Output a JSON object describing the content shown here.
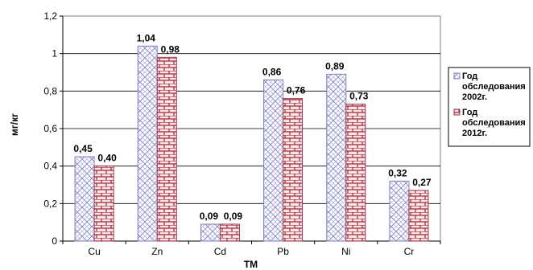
{
  "chart_data": {
    "type": "bar",
    "categories": [
      "Cu",
      "Zn",
      "Cd",
      "Pb",
      "Ni",
      "Cr"
    ],
    "series": [
      {
        "name": [
          "Год",
          "обследования",
          "2002г."
        ],
        "values": [
          0.45,
          1.04,
          0.09,
          0.86,
          0.89,
          0.32
        ],
        "labels": [
          "0,45",
          "1,04",
          "0,09",
          "0,86",
          "0,89",
          "0,32"
        ],
        "fill": "#d9d9f2",
        "stroke": "#7f7fb8",
        "pattern": "crosshatch"
      },
      {
        "name": [
          "Год",
          "обследования",
          "2012г."
        ],
        "values": [
          0.4,
          0.98,
          0.09,
          0.76,
          0.73,
          0.27
        ],
        "labels": [
          "0,40",
          "0,98",
          "0,09",
          "0,76",
          "0,73",
          "0,27"
        ],
        "fill": "#f2dede",
        "stroke": "#993344",
        "pattern": "brick"
      }
    ],
    "xlabel": "ТМ",
    "ylabel": "мг/кг",
    "ylim": [
      0,
      1.2
    ],
    "yticks": [
      "0",
      "0,2",
      "0,4",
      "0,6",
      "0,8",
      "1",
      "1,2"
    ],
    "grid": true,
    "legend_position": "right"
  }
}
